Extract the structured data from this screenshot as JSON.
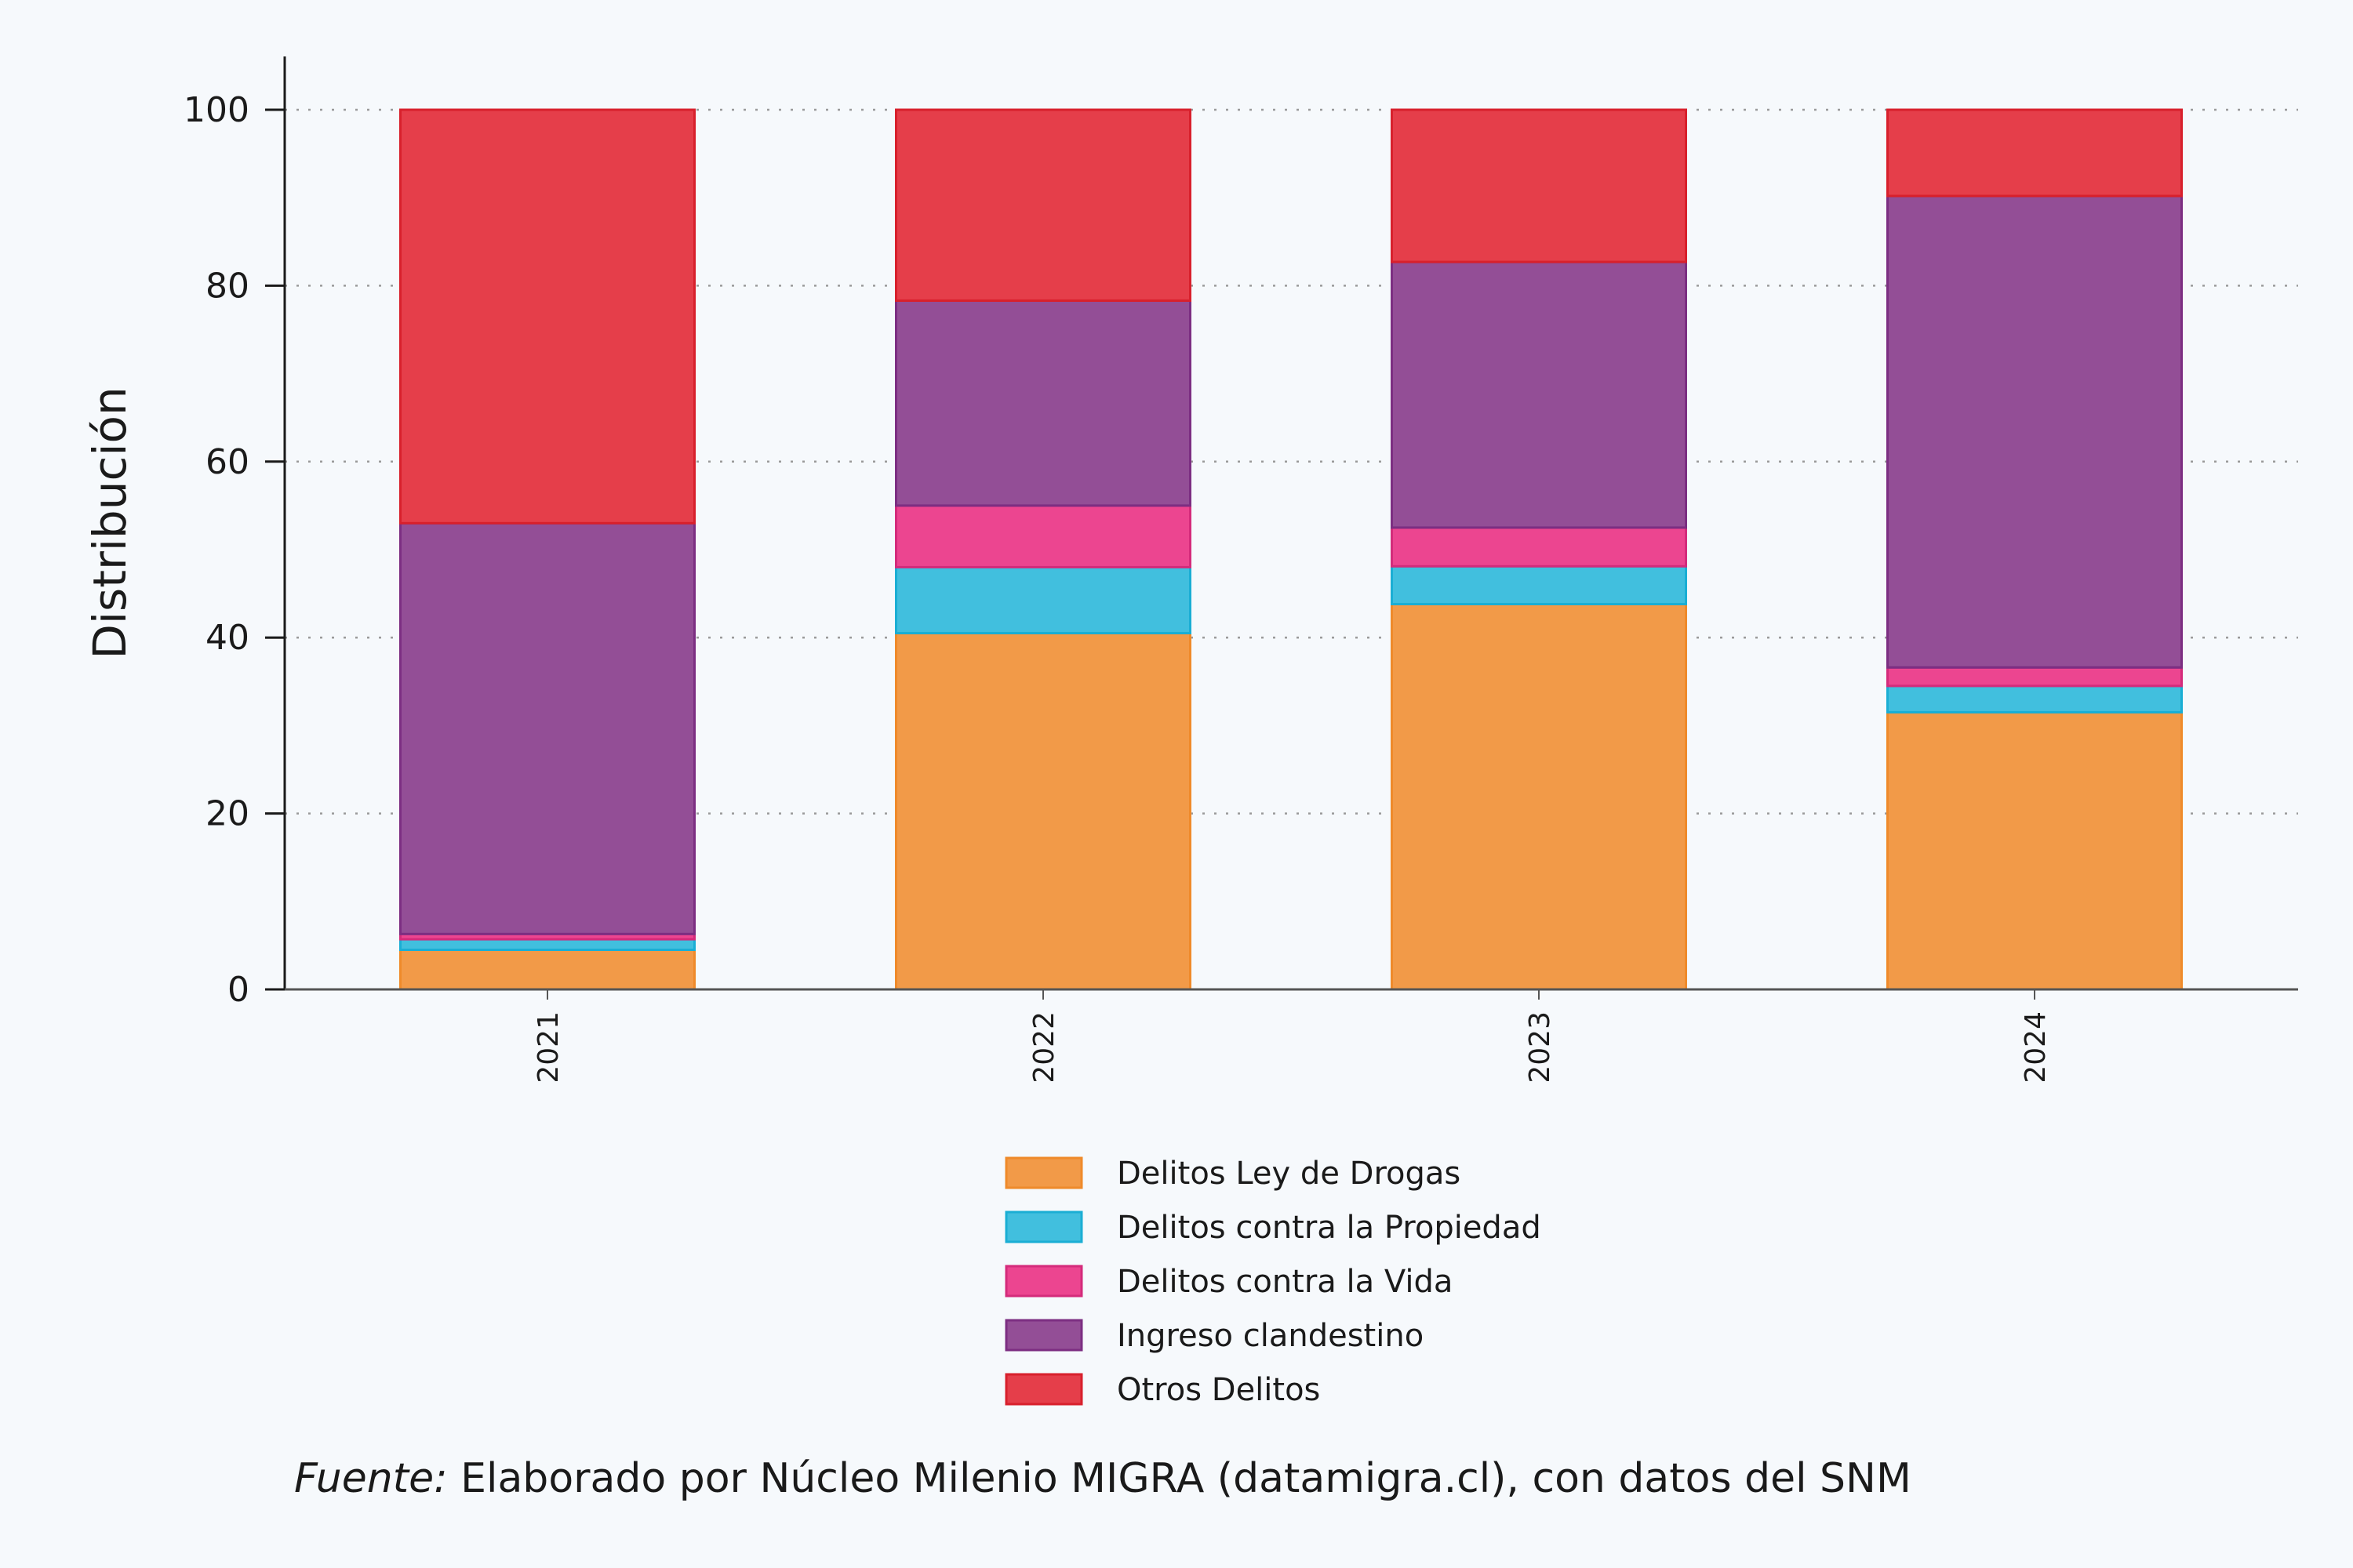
{
  "chart_data": {
    "type": "bar",
    "stacked": true,
    "title": "",
    "xlabel": "",
    "ylabel": "Distribución",
    "ylim": [
      0,
      106
    ],
    "yticks": [
      0,
      20,
      40,
      60,
      80,
      100
    ],
    "grid": true,
    "legend_position": "bottom-center",
    "categories": [
      "2021",
      "2022",
      "2023",
      "2024"
    ],
    "series": [
      {
        "name": "Delitos Ley de Drogas",
        "color": "#f29a48",
        "stroke": "#ef8a2a",
        "values": [
          4.5,
          40.5,
          43.8,
          31.5
        ]
      },
      {
        "name": "Delitos contra la Propiedad",
        "color": "#41bfde",
        "stroke": "#1aaed4",
        "values": [
          1.2,
          7.5,
          4.3,
          3.0
        ]
      },
      {
        "name": "Delitos contra la Vida",
        "color": "#ec4590",
        "stroke": "#d42b7b",
        "values": [
          0.6,
          7.0,
          4.4,
          2.1
        ]
      },
      {
        "name": "Ingreso clandestino",
        "color": "#934e96",
        "stroke": "#7c2e82",
        "values": [
          46.7,
          23.3,
          30.2,
          53.6
        ]
      },
      {
        "name": "Otros Delitos",
        "color": "#e53e4a",
        "stroke": "#d8202c",
        "values": [
          47.0,
          21.7,
          17.3,
          9.8
        ]
      }
    ]
  },
  "source": {
    "prefix": "Fuente:",
    "text": " Elaborado por Núcleo Milenio MIGRA (datamigra.cl), con datos del SNM"
  }
}
